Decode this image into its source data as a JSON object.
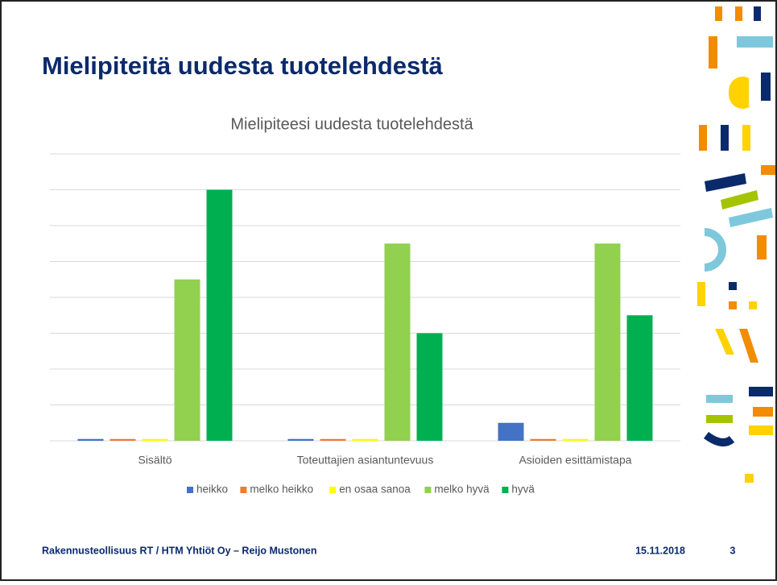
{
  "slide": {
    "title": "Mielipiteitä uudesta tuotelehdestä",
    "footer": "Rakennusteollisuus RT / HTM Yhtiöt Oy – Reijo Mustonen",
    "date": "15.11.2018",
    "page": "3"
  },
  "chart_data": {
    "type": "bar",
    "title": "Mielipiteesi uudesta tuotelehdestä",
    "categories": [
      "Sisältö",
      "Toteuttajien asiantuntevuus",
      "Asioiden esittämistapa"
    ],
    "series": [
      {
        "name": "heikko",
        "color": "#4472c4",
        "values": [
          0.05,
          0.05,
          0.5
        ]
      },
      {
        "name": "melko heikko",
        "color": "#ed7d31",
        "values": [
          0.05,
          0.05,
          0.05
        ]
      },
      {
        "name": "en osaa sanoa",
        "color": "#ffff00",
        "values": [
          0.05,
          0.05,
          0.05
        ]
      },
      {
        "name": "melko hyvä",
        "color": "#92d050",
        "values": [
          4.5,
          5.5,
          5.5
        ]
      },
      {
        "name": "hyvä",
        "color": "#00b050",
        "values": [
          7,
          3,
          3.5
        ]
      }
    ],
    "ylim": [
      0,
      8
    ],
    "yticks": [
      0,
      1,
      2,
      3,
      4,
      5,
      6,
      7,
      8
    ],
    "ytick_labels": false,
    "grid": true,
    "legend": "bottom"
  }
}
